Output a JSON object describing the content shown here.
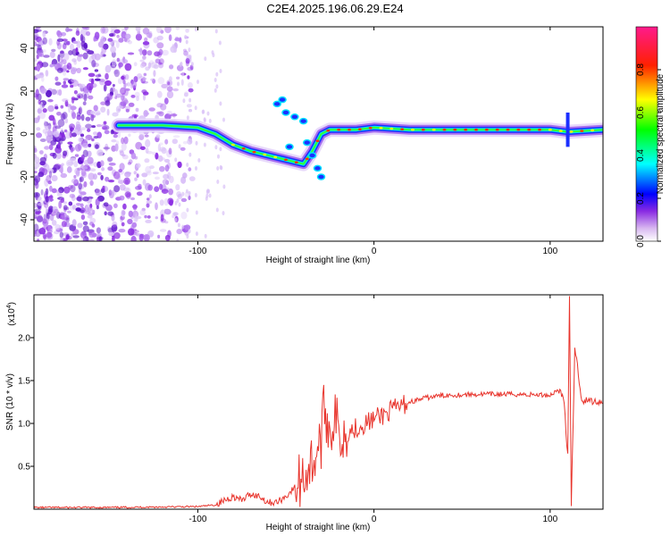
{
  "title": "C2E4.2025.196.06.29.E24",
  "chart_data": [
    {
      "type": "heatmap",
      "xlabel": "Height of straight line (km)",
      "ylabel": "Frequency (Hz)",
      "xlim": [
        -193,
        130
      ],
      "ylim": [
        -50,
        50
      ],
      "xticks": [
        -100,
        0,
        100
      ],
      "xtick_labels": [
        "-100",
        "0",
        "100"
      ],
      "yticks": [
        -40,
        -20,
        0,
        20,
        40
      ],
      "ytick_labels": [
        "-40",
        "-20",
        "0",
        "20",
        "40"
      ],
      "colorbar": {
        "label": "Normalized spectral amplitude",
        "range": [
          0,
          1
        ],
        "ticks": [
          0.0,
          0.2,
          0.4,
          0.6,
          0.8
        ],
        "tick_labels": [
          "0.0",
          "0.2",
          "0.4",
          "0.6",
          "0.8"
        ],
        "colormap": [
          "#ffffff",
          "#8a2be2",
          "#0000ff",
          "#00ffff",
          "#00ff00",
          "#ffff00",
          "#ff0000",
          "#ff00ff"
        ]
      },
      "ridge": {
        "x": [
          -145,
          -120,
          -100,
          -90,
          -80,
          -70,
          -60,
          -50,
          -40,
          -35,
          -30,
          -25,
          -20,
          -10,
          0,
          20,
          50,
          80,
          100,
          110,
          130
        ],
        "y": [
          4,
          4,
          3,
          0,
          -5,
          -8,
          -10,
          -12,
          -14,
          -8,
          0,
          2,
          2,
          2,
          3,
          2,
          2,
          2,
          2,
          1,
          2
        ]
      },
      "grid": false
    },
    {
      "type": "line",
      "xlabel": "Height of straight line (km)",
      "ylabel": "SNR (10 * v/v)",
      "y_multiplier": "(x10⁴)",
      "y_multiplier_base": "(x10",
      "y_multiplier_exp": "4",
      "y_multiplier_close": ")",
      "xlim": [
        -193,
        130
      ],
      "ylim": [
        0,
        2.5
      ],
      "xticks": [
        -100,
        0,
        100
      ],
      "xtick_labels": [
        "-100",
        "0",
        "100"
      ],
      "yticks": [
        0.5,
        1.0,
        1.5,
        2.0
      ],
      "ytick_labels": [
        "0.5",
        "1.0",
        "1.5",
        "2.0"
      ],
      "color": "#e8342c",
      "series": [
        {
          "x": [
            -193,
            -150,
            -100,
            -90,
            -85,
            -80,
            -75,
            -70,
            -65,
            -60,
            -55,
            -50,
            -45,
            -40,
            -35,
            -30,
            -28,
            -25,
            -22,
            -20,
            -15,
            -10,
            -5,
            0,
            10,
            20,
            30,
            40,
            60,
            80,
            100,
            105,
            108,
            110,
            111,
            112,
            114,
            118,
            125,
            130
          ],
          "y": [
            0.02,
            0.02,
            0.03,
            0.05,
            0.1,
            0.15,
            0.1,
            0.18,
            0.15,
            0.08,
            0.08,
            0.15,
            0.25,
            0.4,
            0.55,
            0.8,
            1.2,
            0.9,
            1.1,
            0.85,
            0.9,
            0.95,
            1.0,
            1.05,
            1.15,
            1.25,
            1.3,
            1.33,
            1.34,
            1.34,
            1.33,
            1.4,
            1.25,
            0.6,
            2.45,
            0.05,
            1.9,
            1.27,
            1.26,
            1.25
          ]
        }
      ],
      "grid": false
    }
  ]
}
